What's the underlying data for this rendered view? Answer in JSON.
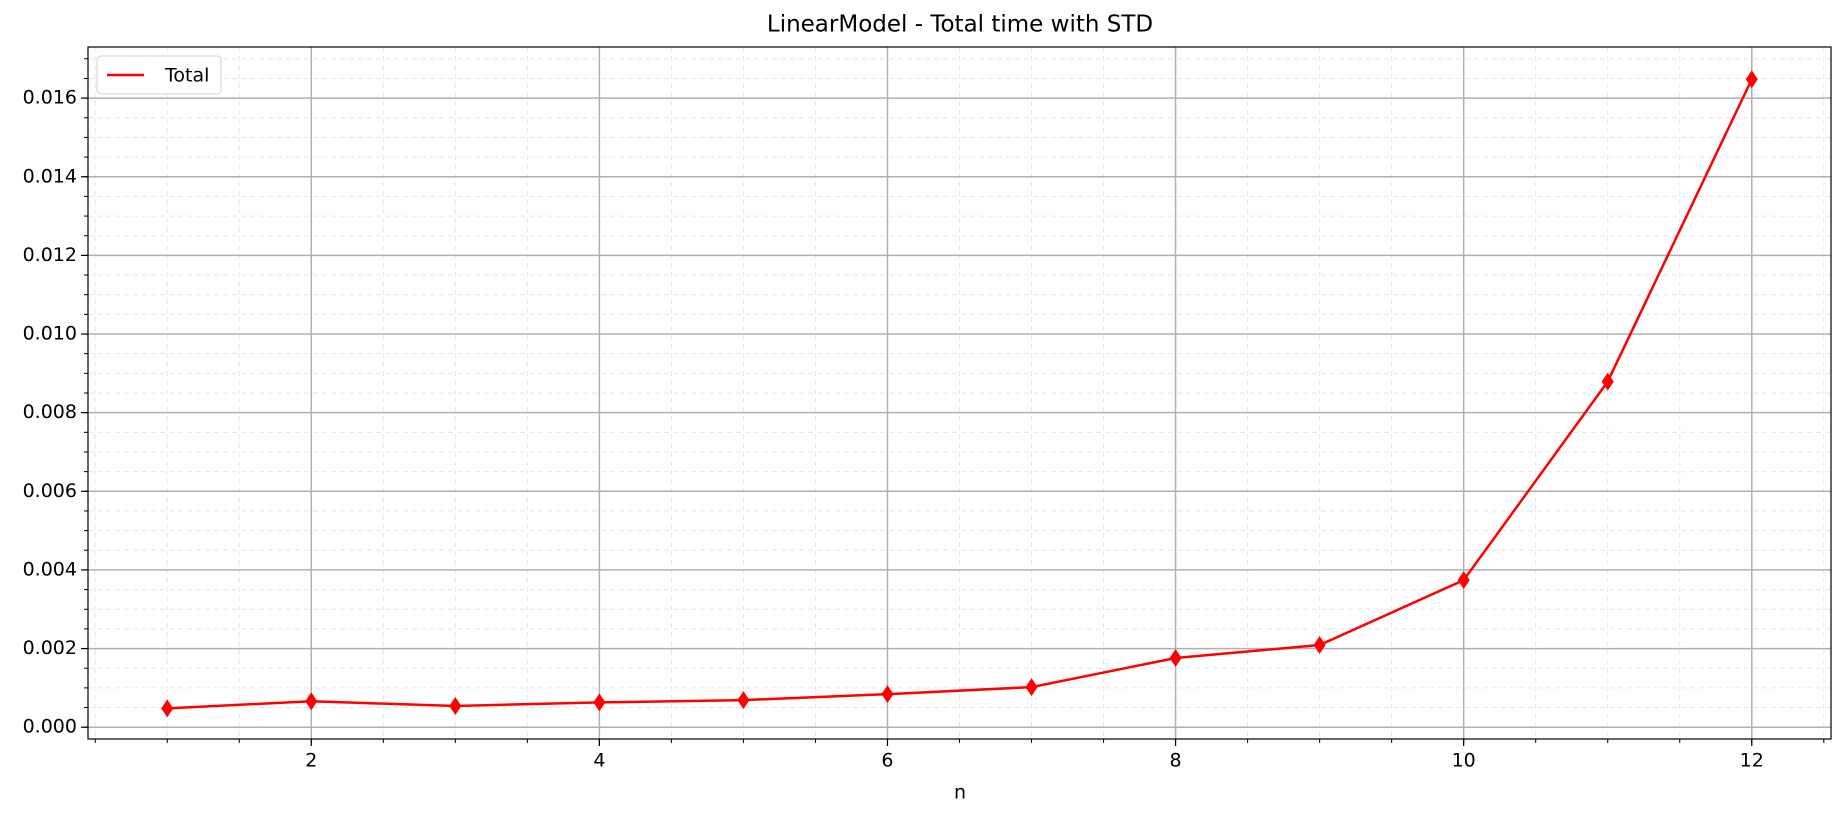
{
  "chart_data": {
    "type": "line",
    "title": "LinearModel - Total time with STD",
    "x_label": "n",
    "x": [
      1,
      2,
      3,
      4,
      5,
      6,
      7,
      8,
      9,
      10,
      11,
      12
    ],
    "series": [
      {
        "name": "Total",
        "color": "#ff0000",
        "values": [
          0.00048,
          0.00066,
          0.00054,
          0.00063,
          0.00069,
          0.00084,
          0.00102,
          0.00176,
          0.00209,
          0.00374,
          0.00879,
          0.01648
        ]
      }
    ],
    "xlim": [
      0.45,
      12.55
    ],
    "xticks": [
      2,
      4,
      6,
      8,
      10,
      12
    ],
    "ylim": [
      -0.0003,
      0.0173
    ],
    "yticks": [
      {
        "value": 0,
        "label": "0.000"
      },
      {
        "value": 0.002,
        "label": "0.002"
      },
      {
        "value": 0.004,
        "label": "0.004"
      },
      {
        "value": 0.006,
        "label": "0.006"
      },
      {
        "value": 0.008,
        "label": "0.008"
      },
      {
        "value": 0.01,
        "label": "0.010"
      },
      {
        "value": 0.012,
        "label": "0.012"
      },
      {
        "value": 0.014,
        "label": "0.014"
      },
      {
        "value": 0.016,
        "label": "0.016"
      }
    ],
    "grid": true,
    "minor_grid": true,
    "legend": "upper left"
  }
}
